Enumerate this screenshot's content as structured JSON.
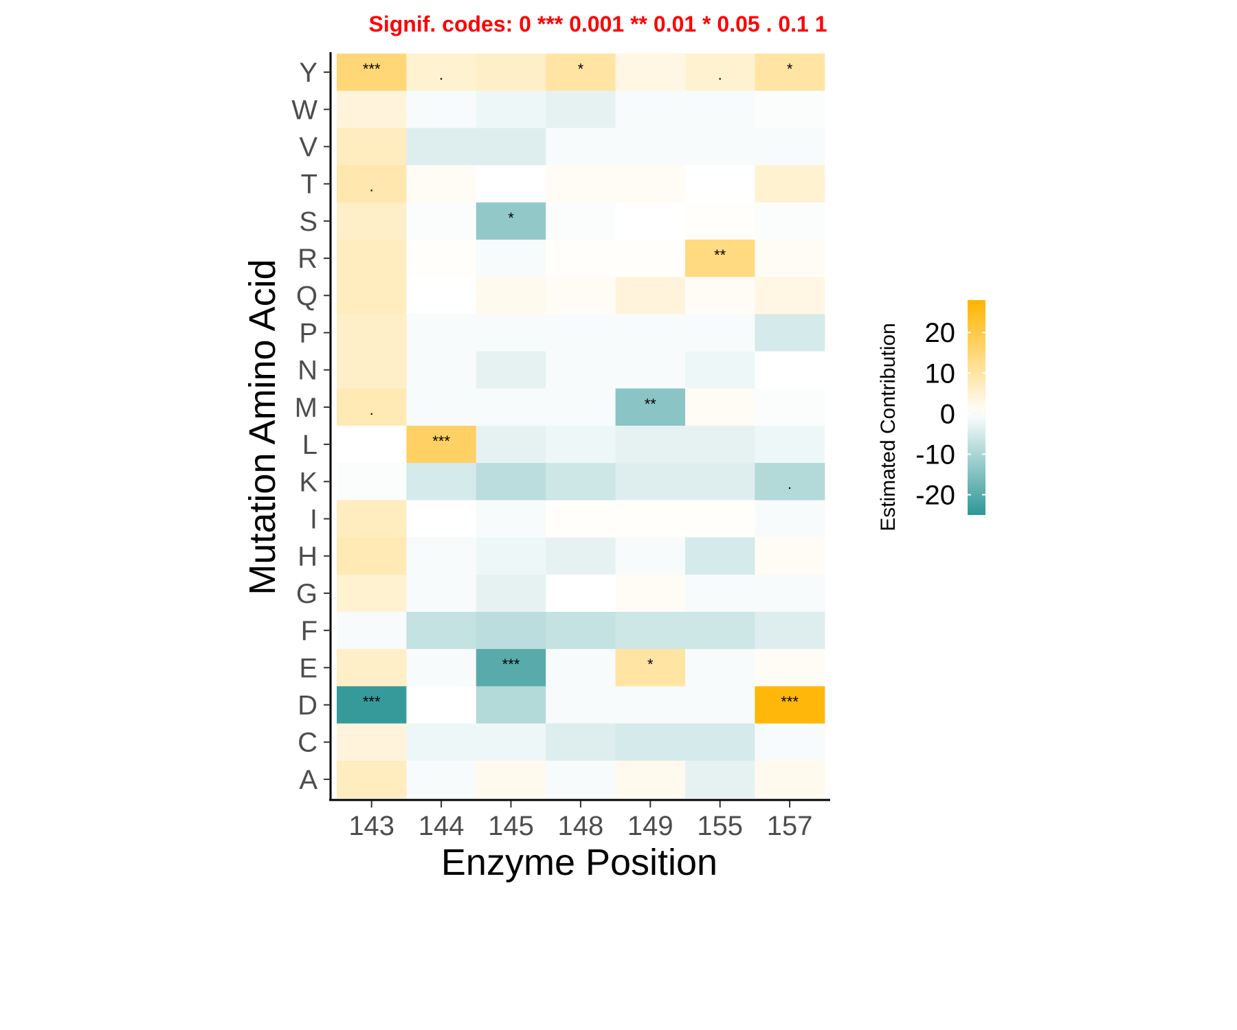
{
  "chart_data": {
    "type": "heatmap",
    "signif_codes": "Signif. codes:  0 *** 0.001 ** 0.01 * 0.05 . 0.1   1",
    "xlabel": "Enzyme Position",
    "ylabel": "Mutation Amino Acid",
    "x_categories": [
      "143",
      "144",
      "145",
      "148",
      "149",
      "155",
      "157"
    ],
    "y_categories": [
      "Y",
      "W",
      "V",
      "T",
      "S",
      "R",
      "Q",
      "P",
      "N",
      "M",
      "L",
      "K",
      "I",
      "H",
      "G",
      "F",
      "E",
      "D",
      "C",
      "A"
    ],
    "values": [
      [
        15,
        5,
        6,
        10,
        3,
        5,
        10
      ],
      [
        4,
        -1,
        -2,
        -3,
        -1,
        -1,
        -0.5
      ],
      [
        7,
        -4,
        -4,
        -1,
        -1,
        -1,
        -1
      ],
      [
        9,
        1,
        0,
        1,
        1,
        0,
        5
      ],
      [
        6,
        -0.5,
        -13,
        -0.5,
        0,
        0.5,
        -0.5
      ],
      [
        7,
        0.5,
        -1,
        0.5,
        0.5,
        14,
        1
      ],
      [
        7,
        0,
        2,
        1,
        4,
        1,
        3
      ],
      [
        6,
        -1,
        -1,
        -1,
        -1,
        -1,
        -5
      ],
      [
        6,
        -1,
        -3,
        -1,
        -1,
        -2,
        0
      ],
      [
        8,
        -1,
        -1,
        -1,
        -14,
        1,
        -0.5
      ],
      [
        0,
        17,
        -3,
        -2,
        -3,
        -3,
        -2
      ],
      [
        -0.5,
        -5,
        -8,
        -6,
        -4,
        -4,
        -9
      ],
      [
        7,
        0,
        -1,
        0.5,
        0.5,
        0.5,
        -1
      ],
      [
        8,
        -1,
        -2,
        -3,
        -1,
        -5,
        1
      ],
      [
        5,
        -1,
        -3,
        0,
        1,
        -1,
        -1
      ],
      [
        -1,
        -7,
        -8,
        -7,
        -6,
        -6,
        -4
      ],
      [
        6,
        -1,
        -20,
        -1,
        10,
        -1,
        1
      ],
      [
        -24,
        0,
        -9,
        -1,
        -1,
        -1,
        27
      ],
      [
        4,
        -2,
        -2,
        -4,
        -5,
        -5,
        -1
      ],
      [
        7,
        -1,
        2,
        -1,
        2,
        -3,
        2
      ]
    ],
    "significance": [
      [
        "***",
        ".",
        "",
        "*",
        "",
        ".",
        "*"
      ],
      [
        "",
        "",
        "",
        "",
        "",
        "",
        ""
      ],
      [
        "",
        "",
        "",
        "",
        "",
        "",
        ""
      ],
      [
        ".",
        "",
        "",
        "",
        "",
        "",
        ""
      ],
      [
        "",
        "",
        "*",
        "",
        "",
        "",
        ""
      ],
      [
        "",
        "",
        "",
        "",
        "",
        "**",
        ""
      ],
      [
        "",
        "",
        "",
        "",
        "",
        "",
        ""
      ],
      [
        "",
        "",
        "",
        "",
        "",
        "",
        ""
      ],
      [
        "",
        "",
        "",
        "",
        "",
        "",
        ""
      ],
      [
        ".",
        "",
        "",
        "",
        "**",
        "",
        ""
      ],
      [
        "",
        "***",
        "",
        "",
        "",
        "",
        ""
      ],
      [
        "",
        "",
        "",
        "",
        "",
        "",
        "."
      ],
      [
        "",
        "",
        "",
        "",
        "",
        "",
        ""
      ],
      [
        "",
        "",
        "",
        "",
        "",
        "",
        ""
      ],
      [
        "",
        "",
        "",
        "",
        "",
        "",
        ""
      ],
      [
        "",
        "",
        "",
        "",
        "",
        "",
        ""
      ],
      [
        "",
        "",
        "***",
        "",
        "*",
        "",
        ""
      ],
      [
        "***",
        "",
        "",
        "",
        "",
        "",
        "***"
      ],
      [
        "",
        "",
        "",
        "",
        "",
        "",
        ""
      ],
      [
        "",
        "",
        "",
        "",
        "",
        "",
        ""
      ]
    ],
    "legend": {
      "title": "Estimated Contribution",
      "ticks": [
        "20",
        "10",
        "0",
        "-10",
        "-20"
      ],
      "tick_values": [
        20,
        10,
        0,
        -10,
        -20
      ],
      "range": [
        -25,
        28
      ]
    },
    "colors": {
      "low": "#2f9696",
      "mid": "#ffffff",
      "high": "#ffb400",
      "signif_text": "#ff0000"
    }
  }
}
